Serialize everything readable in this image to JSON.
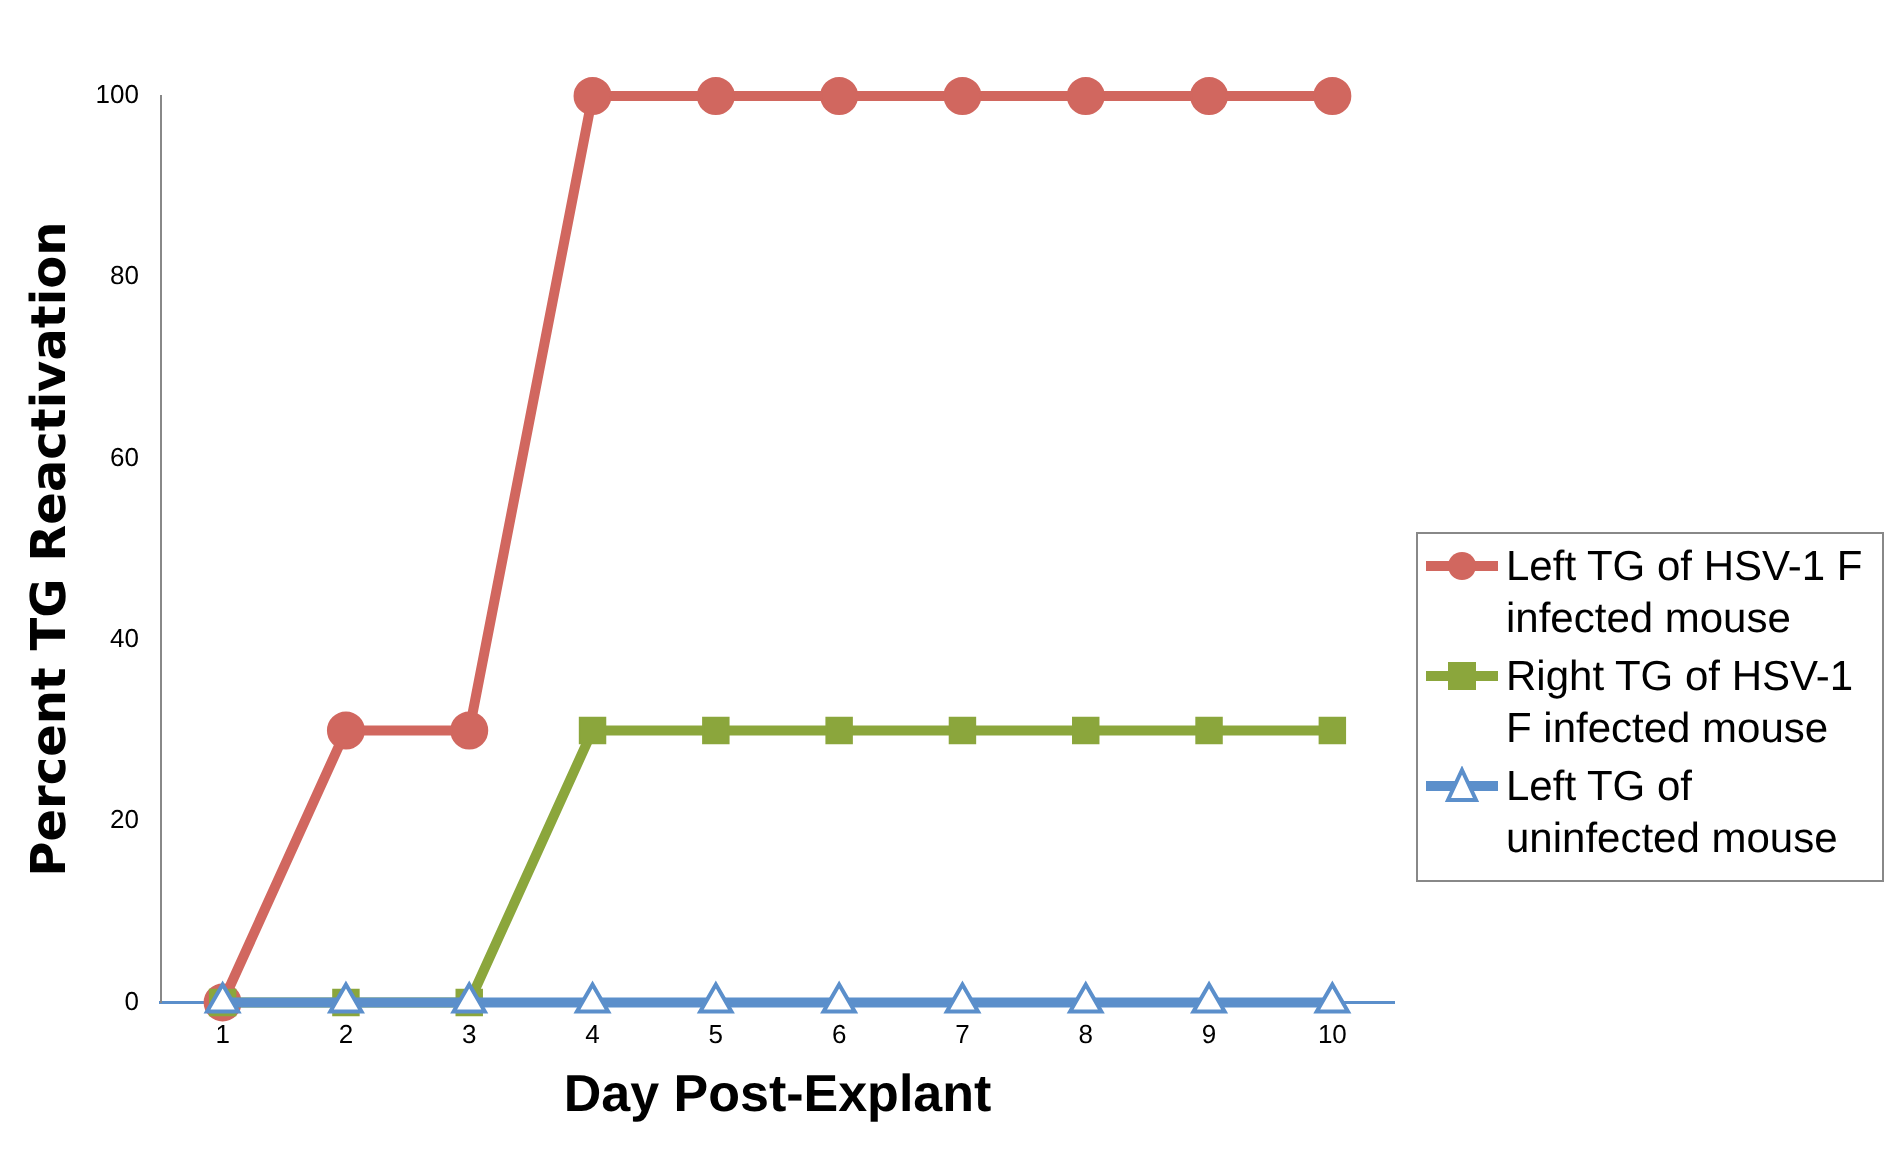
{
  "chart_data": {
    "type": "line",
    "xlabel": "Day Post-Explant",
    "ylabel": "Percent TG Reactivation",
    "categories": [
      "1",
      "2",
      "3",
      "4",
      "5",
      "6",
      "7",
      "8",
      "9",
      "10"
    ],
    "series": [
      {
        "name": "Left TG of HSV-1 F infected mouse",
        "color": "#d1675f",
        "marker": "circle",
        "values": [
          0,
          30,
          30,
          100,
          100,
          100,
          100,
          100,
          100,
          100
        ]
      },
      {
        "name": "Right TG of HSV-1 F infected mouse",
        "color": "#8ba63c",
        "marker": "square",
        "values": [
          0,
          0,
          0,
          30,
          30,
          30,
          30,
          30,
          30,
          30
        ]
      },
      {
        "name": "Left TG of uninfected mouse",
        "color": "#5b8fcb",
        "marker": "triangle",
        "values": [
          0,
          0,
          0,
          0,
          0,
          0,
          0,
          0,
          0,
          0
        ]
      }
    ],
    "ylim": [
      0,
      100
    ],
    "yticks": [
      0,
      20,
      40,
      60,
      80,
      100
    ],
    "grid": false,
    "legend": "right",
    "line_style": "solid"
  }
}
